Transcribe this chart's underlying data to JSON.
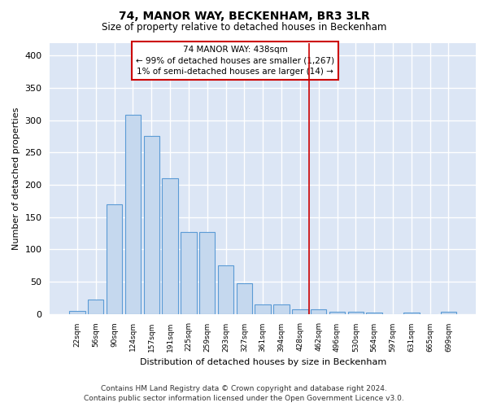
{
  "title": "74, MANOR WAY, BECKENHAM, BR3 3LR",
  "subtitle": "Size of property relative to detached houses in Beckenham",
  "xlabel": "Distribution of detached houses by size in Beckenham",
  "ylabel": "Number of detached properties",
  "bar_color": "#c5d8ee",
  "bar_edge_color": "#5b9bd5",
  "background_color": "#dce6f5",
  "grid_color": "#ffffff",
  "bin_labels": [
    "22sqm",
    "56sqm",
    "90sqm",
    "124sqm",
    "157sqm",
    "191sqm",
    "225sqm",
    "259sqm",
    "293sqm",
    "327sqm",
    "361sqm",
    "394sqm",
    "428sqm",
    "462sqm",
    "496sqm",
    "530sqm",
    "564sqm",
    "597sqm",
    "631sqm",
    "665sqm",
    "699sqm"
  ],
  "bar_heights": [
    5,
    22,
    170,
    308,
    275,
    210,
    127,
    127,
    75,
    48,
    14,
    14,
    7,
    7,
    3,
    3,
    2,
    0,
    2,
    0,
    3
  ],
  "vline_x": 12.5,
  "vline_color": "#cc0000",
  "annotation_text": "74 MANOR WAY: 438sqm\n← 99% of detached houses are smaller (1,267)\n1% of semi-detached houses are larger (14) →",
  "annotation_box_color": "#ffffff",
  "annotation_box_edge": "#cc0000",
  "ylim": [
    0,
    420
  ],
  "yticks": [
    0,
    50,
    100,
    150,
    200,
    250,
    300,
    350,
    400
  ],
  "footer_line1": "Contains HM Land Registry data © Crown copyright and database right 2024.",
  "footer_line2": "Contains public sector information licensed under the Open Government Licence v3.0."
}
